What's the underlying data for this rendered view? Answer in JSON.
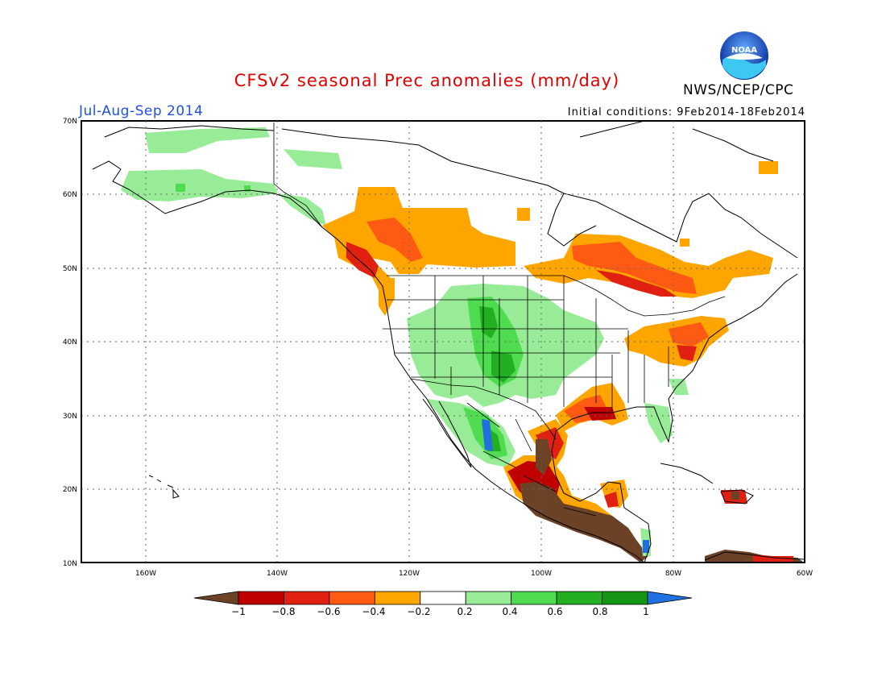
{
  "header": {
    "title": "CFSv2 seasonal Prec anomalies (mm/day)",
    "period": "Jul-Aug-Sep 2014",
    "initial_conditions": "Initial conditions: 9Feb2014-18Feb2014",
    "agency": "NWS/NCEP/CPC",
    "logo_text": "NOAA"
  },
  "colors": {
    "title": "#e00000",
    "period": "#2050e0",
    "lt_neg1": "#6b4226",
    "neg08_neg1": "#c00000",
    "neg06_neg08": "#e02010",
    "neg04_neg06": "#ff5a14",
    "neg02_neg04": "#ffa500",
    "near_zero": "#ffffff",
    "pos02_pos04": "#98ec98",
    "pos04_pos06": "#50dc50",
    "pos06_pos08": "#22b022",
    "pos08_pos1": "#149614",
    "gt_pos1": "#2070e0"
  },
  "map": {
    "lat_labels": [
      "70N",
      "60N",
      "50N",
      "40N",
      "30N",
      "20N",
      "10N"
    ],
    "lon_labels": [
      "160W",
      "140W",
      "120W",
      "100W",
      "80W",
      "60W"
    ]
  },
  "colorbar": {
    "labels": [
      "−1",
      "−0.8",
      "−0.6",
      "−0.4",
      "−0.2",
      "0.2",
      "0.4",
      "0.6",
      "0.8",
      "1"
    ],
    "bins": [
      {
        "range": "<-1",
        "color": "#6b4226"
      },
      {
        "range": "-1 to -0.8",
        "color": "#c00000"
      },
      {
        "range": "-0.8 to -0.6",
        "color": "#e02010"
      },
      {
        "range": "-0.6 to -0.4",
        "color": "#ff5a14"
      },
      {
        "range": "-0.4 to -0.2",
        "color": "#ffa500"
      },
      {
        "range": "-0.2 to 0.2",
        "color": "#ffffff"
      },
      {
        "range": "0.2 to 0.4",
        "color": "#98ec98"
      },
      {
        "range": "0.4 to 0.6",
        "color": "#50dc50"
      },
      {
        "range": "0.6 to 0.8",
        "color": "#22b022"
      },
      {
        "range": "0.8 to 1",
        "color": "#149614"
      },
      {
        "range": ">1",
        "color": "#2070e0"
      }
    ]
  }
}
